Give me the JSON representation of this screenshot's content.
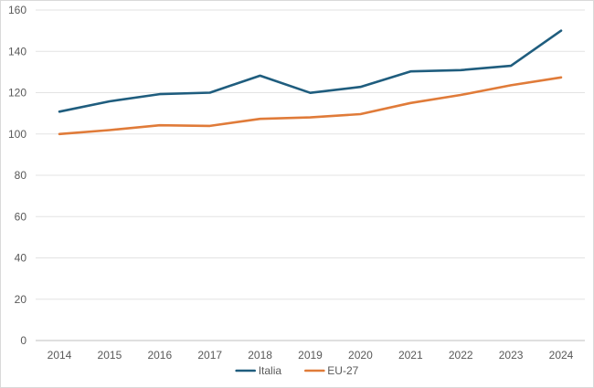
{
  "chart_data": {
    "type": "line",
    "title": "",
    "xlabel": "",
    "ylabel": "",
    "x": [
      2014,
      2015,
      2016,
      2017,
      2018,
      2019,
      2020,
      2021,
      2022,
      2023,
      2024
    ],
    "ylim": [
      0,
      160
    ],
    "yticks": [
      0,
      20,
      40,
      60,
      80,
      100,
      120,
      140,
      160
    ],
    "grid": true,
    "legend_position": "bottom",
    "series": [
      {
        "name": "Italia",
        "color": "#1f5d7e",
        "values": [
          110.8,
          115.8,
          119.3,
          120.0,
          128.2,
          119.9,
          122.8,
          130.3,
          130.9,
          133.0,
          150.0
        ]
      },
      {
        "name": "EU-27",
        "color": "#e07b39",
        "values": [
          100.0,
          101.9,
          104.2,
          103.9,
          107.3,
          108.0,
          109.6,
          115.0,
          118.9,
          123.6,
          127.4
        ]
      }
    ]
  }
}
